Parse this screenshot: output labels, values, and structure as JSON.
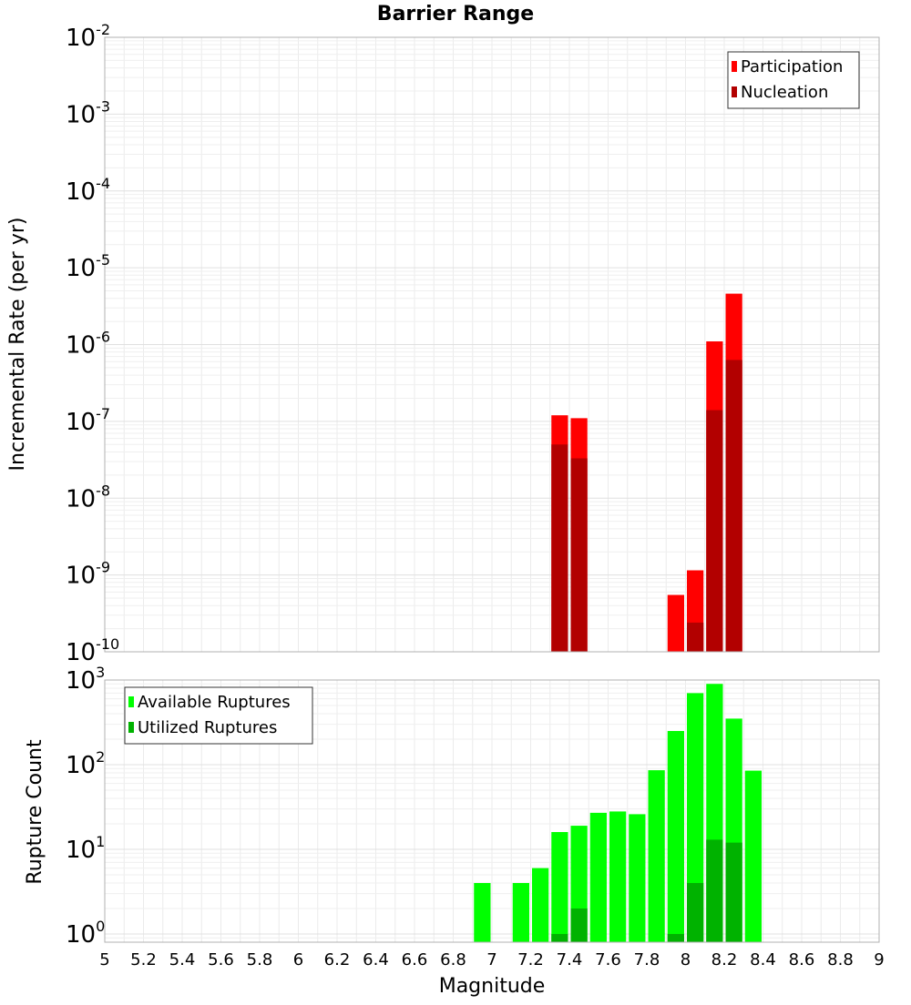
{
  "title": "Barrier Range",
  "chart_data": [
    {
      "type": "bar",
      "panel": "top",
      "ylabel": "Incremental Rate (per yr)",
      "yscale": "log",
      "ylim": [
        1e-10,
        0.01
      ],
      "xlim": [
        5,
        9
      ],
      "bin_width": 0.1,
      "legend": {
        "position": "top-right"
      },
      "y_ticks": [
        {
          "base": "10",
          "exp": "-10"
        },
        {
          "base": "10",
          "exp": "-9"
        },
        {
          "base": "10",
          "exp": "-8"
        },
        {
          "base": "10",
          "exp": "-7"
        },
        {
          "base": "10",
          "exp": "-6"
        },
        {
          "base": "10",
          "exp": "-5"
        },
        {
          "base": "10",
          "exp": "-4"
        },
        {
          "base": "10",
          "exp": "-3"
        },
        {
          "base": "10",
          "exp": "-2"
        }
      ],
      "series": [
        {
          "name": "Participation",
          "color": "#ff0000",
          "x": [
            7.35,
            7.45,
            7.95,
            8.05,
            8.15,
            8.25
          ],
          "values": [
            1.2e-07,
            1.1e-07,
            5.5e-10,
            1.15e-09,
            1.1e-06,
            4.6e-06
          ]
        },
        {
          "name": "Nucleation",
          "color": "#b20000",
          "x": [
            7.35,
            7.45,
            8.05,
            8.15,
            8.25
          ],
          "values": [
            5e-08,
            3.3e-08,
            2.4e-10,
            1.4e-07,
            6.3e-07
          ]
        }
      ]
    },
    {
      "type": "bar",
      "panel": "bottom",
      "xlabel": "Magnitude",
      "ylabel": "Rupture Count",
      "yscale": "log",
      "ylim": [
        0.8,
        1000
      ],
      "xlim": [
        5,
        9
      ],
      "bin_width": 0.1,
      "legend": {
        "position": "top-left"
      },
      "y_ticks": [
        {
          "base": "10",
          "exp": "0"
        },
        {
          "base": "10",
          "exp": "1"
        },
        {
          "base": "10",
          "exp": "2"
        },
        {
          "base": "10",
          "exp": "3"
        }
      ],
      "x_ticks": [
        "5",
        "5.2",
        "5.4",
        "5.6",
        "5.8",
        "6",
        "6.2",
        "6.4",
        "6.6",
        "6.8",
        "7",
        "7.2",
        "7.4",
        "7.6",
        "7.8",
        "8",
        "8.2",
        "8.4",
        "8.6",
        "8.8",
        "9"
      ],
      "series": [
        {
          "name": "Available Ruptures",
          "color": "#00ff00",
          "x": [
            6.95,
            7.15,
            7.25,
            7.35,
            7.45,
            7.55,
            7.65,
            7.75,
            7.85,
            7.95,
            8.05,
            8.15,
            8.25,
            8.35
          ],
          "values": [
            4,
            4,
            6,
            16,
            19,
            27,
            28,
            26,
            86,
            250,
            700,
            900,
            350,
            85
          ]
        },
        {
          "name": "Utilized Ruptures",
          "color": "#00b200",
          "x": [
            7.35,
            7.45,
            7.95,
            8.05,
            8.15,
            8.25
          ],
          "values": [
            1,
            2,
            1,
            4,
            13,
            12
          ]
        }
      ]
    }
  ]
}
